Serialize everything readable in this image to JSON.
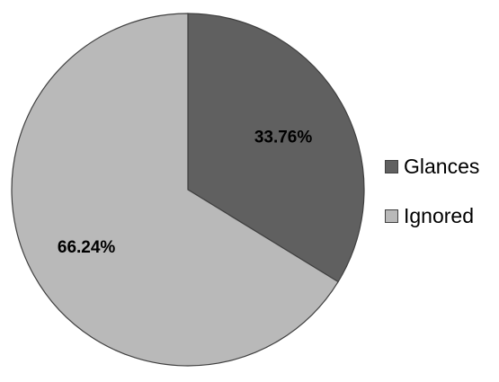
{
  "chart_data": {
    "type": "pie",
    "title": "",
    "slices": [
      {
        "label": "Glances",
        "value": 33.76,
        "value_label": "33.76%",
        "color": "#606060"
      },
      {
        "label": "Ignored",
        "value": 66.24,
        "value_label": "66.24%",
        "color": "#b9b9b9"
      }
    ],
    "start_angle": "12 o'clock",
    "direction": "clockwise",
    "legend_position": "right"
  },
  "legend": {
    "items": [
      {
        "label": "Glances",
        "color": "#606060"
      },
      {
        "label": "Ignored",
        "color": "#b9b9b9"
      }
    ]
  }
}
